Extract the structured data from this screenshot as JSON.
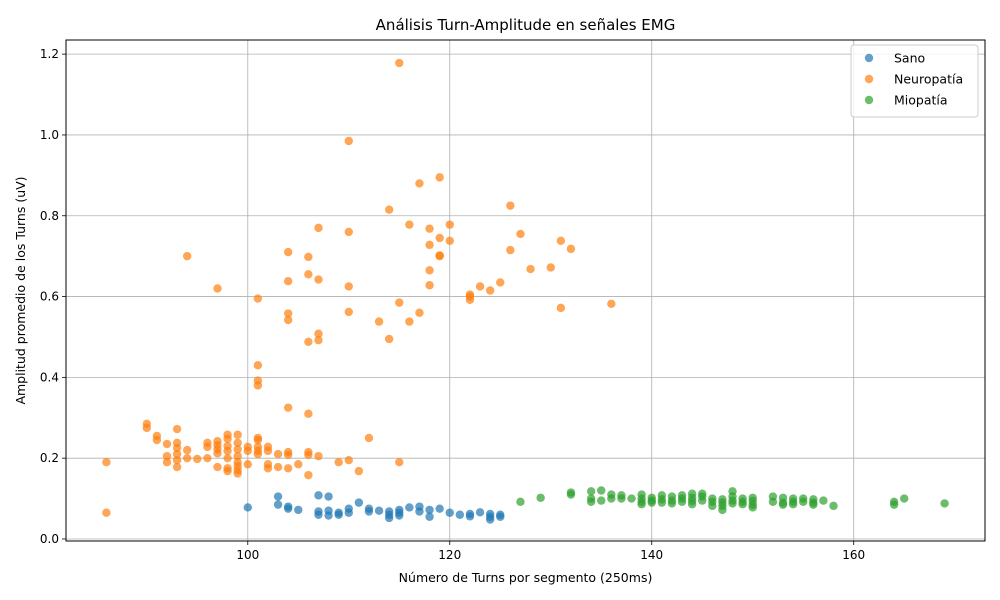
{
  "chart_data": {
    "type": "scatter",
    "title": "Análisis Turn-Amplitude en señales EMG",
    "xlabel": "Número de Turns por segmento (250ms)",
    "ylabel": "Amplitud promedio de los Turns (uV)",
    "xlim": [
      82,
      173
    ],
    "ylim": [
      -0.005,
      1.235
    ],
    "xticks": [
      100,
      120,
      140,
      160
    ],
    "yticks": [
      0.0,
      0.2,
      0.4,
      0.6,
      0.8,
      1.0,
      1.2
    ],
    "ytick_labels": [
      "0.0",
      "0.2",
      "0.4",
      "0.6",
      "0.8",
      "1.0",
      "1.2"
    ],
    "grid": true,
    "legend_position": "top-right",
    "series": [
      {
        "name": "Sano",
        "color": "#1f77b4",
        "points": [
          [
            100,
            0.078
          ],
          [
            103,
            0.105
          ],
          [
            103,
            0.085
          ],
          [
            104,
            0.08
          ],
          [
            104,
            0.075
          ],
          [
            105,
            0.072
          ],
          [
            107,
            0.108
          ],
          [
            107,
            0.068
          ],
          [
            107,
            0.06
          ],
          [
            108,
            0.105
          ],
          [
            108,
            0.07
          ],
          [
            108,
            0.058
          ],
          [
            109,
            0.065
          ],
          [
            109,
            0.06
          ],
          [
            110,
            0.075
          ],
          [
            110,
            0.065
          ],
          [
            111,
            0.09
          ],
          [
            112,
            0.075
          ],
          [
            112,
            0.068
          ],
          [
            113,
            0.07
          ],
          [
            114,
            0.068
          ],
          [
            114,
            0.06
          ],
          [
            114,
            0.052
          ],
          [
            115,
            0.072
          ],
          [
            115,
            0.065
          ],
          [
            115,
            0.058
          ],
          [
            116,
            0.078
          ],
          [
            117,
            0.08
          ],
          [
            117,
            0.068
          ],
          [
            118,
            0.072
          ],
          [
            118,
            0.055
          ],
          [
            119,
            0.075
          ],
          [
            120,
            0.065
          ],
          [
            121,
            0.06
          ],
          [
            122,
            0.062
          ],
          [
            122,
            0.056
          ],
          [
            123,
            0.066
          ],
          [
            124,
            0.062
          ],
          [
            124,
            0.055
          ],
          [
            124,
            0.048
          ],
          [
            125,
            0.06
          ],
          [
            125,
            0.055
          ]
        ]
      },
      {
        "name": "Neuropatía",
        "color": "#ff7f0e",
        "points": [
          [
            86,
            0.19
          ],
          [
            86,
            0.065
          ],
          [
            90,
            0.285
          ],
          [
            90,
            0.275
          ],
          [
            91,
            0.255
          ],
          [
            91,
            0.245
          ],
          [
            92,
            0.235
          ],
          [
            92,
            0.205
          ],
          [
            92,
            0.19
          ],
          [
            93,
            0.272
          ],
          [
            93,
            0.238
          ],
          [
            93,
            0.225
          ],
          [
            93,
            0.21
          ],
          [
            93,
            0.195
          ],
          [
            93,
            0.178
          ],
          [
            94,
            0.7
          ],
          [
            94,
            0.22
          ],
          [
            94,
            0.2
          ],
          [
            95,
            0.198
          ],
          [
            96,
            0.238
          ],
          [
            96,
            0.228
          ],
          [
            96,
            0.2
          ],
          [
            97,
            0.62
          ],
          [
            97,
            0.242
          ],
          [
            97,
            0.232
          ],
          [
            97,
            0.222
          ],
          [
            97,
            0.212
          ],
          [
            97,
            0.178
          ],
          [
            98,
            0.258
          ],
          [
            98,
            0.248
          ],
          [
            98,
            0.23
          ],
          [
            98,
            0.218
          ],
          [
            98,
            0.2
          ],
          [
            98,
            0.175
          ],
          [
            98,
            0.168
          ],
          [
            99,
            0.258
          ],
          [
            99,
            0.238
          ],
          [
            99,
            0.222
          ],
          [
            99,
            0.205
          ],
          [
            99,
            0.19
          ],
          [
            99,
            0.18
          ],
          [
            99,
            0.17
          ],
          [
            99,
            0.162
          ],
          [
            100,
            0.228
          ],
          [
            100,
            0.218
          ],
          [
            100,
            0.185
          ],
          [
            101,
            0.595
          ],
          [
            101,
            0.43
          ],
          [
            101,
            0.392
          ],
          [
            101,
            0.38
          ],
          [
            101,
            0.25
          ],
          [
            101,
            0.245
          ],
          [
            101,
            0.228
          ],
          [
            101,
            0.218
          ],
          [
            101,
            0.21
          ],
          [
            102,
            0.228
          ],
          [
            102,
            0.218
          ],
          [
            102,
            0.185
          ],
          [
            102,
            0.175
          ],
          [
            103,
            0.21
          ],
          [
            103,
            0.178
          ],
          [
            104,
            0.71
          ],
          [
            104,
            0.638
          ],
          [
            104,
            0.558
          ],
          [
            104,
            0.542
          ],
          [
            104,
            0.325
          ],
          [
            104,
            0.215
          ],
          [
            104,
            0.208
          ],
          [
            104,
            0.175
          ],
          [
            105,
            0.185
          ],
          [
            106,
            0.698
          ],
          [
            106,
            0.655
          ],
          [
            106,
            0.488
          ],
          [
            106,
            0.31
          ],
          [
            106,
            0.215
          ],
          [
            106,
            0.208
          ],
          [
            106,
            0.158
          ],
          [
            107,
            0.77
          ],
          [
            107,
            0.642
          ],
          [
            107,
            0.508
          ],
          [
            107,
            0.492
          ],
          [
            107,
            0.205
          ],
          [
            109,
            0.19
          ],
          [
            110,
            0.985
          ],
          [
            110,
            0.76
          ],
          [
            110,
            0.625
          ],
          [
            110,
            0.562
          ],
          [
            110,
            0.195
          ],
          [
            111,
            0.168
          ],
          [
            112,
            0.25
          ],
          [
            113,
            0.538
          ],
          [
            114,
            0.815
          ],
          [
            114,
            0.495
          ],
          [
            115,
            1.178
          ],
          [
            115,
            0.585
          ],
          [
            115,
            0.19
          ],
          [
            116,
            0.778
          ],
          [
            116,
            0.538
          ],
          [
            117,
            0.88
          ],
          [
            117,
            0.56
          ],
          [
            118,
            0.768
          ],
          [
            118,
            0.728
          ],
          [
            118,
            0.665
          ],
          [
            118,
            0.628
          ],
          [
            119,
            0.895
          ],
          [
            119,
            0.745
          ],
          [
            119,
            0.702
          ],
          [
            119,
            0.7
          ],
          [
            120,
            0.778
          ],
          [
            120,
            0.738
          ],
          [
            122,
            0.605
          ],
          [
            122,
            0.6
          ],
          [
            122,
            0.592
          ],
          [
            123,
            0.625
          ],
          [
            124,
            0.615
          ],
          [
            125,
            0.635
          ],
          [
            126,
            0.825
          ],
          [
            126,
            0.715
          ],
          [
            127,
            0.755
          ],
          [
            128,
            0.668
          ],
          [
            130,
            0.672
          ],
          [
            131,
            0.738
          ],
          [
            131,
            0.572
          ],
          [
            132,
            0.718
          ],
          [
            136,
            0.582
          ]
        ]
      },
      {
        "name": "Miopatía",
        "color": "#2ca02c",
        "points": [
          [
            127,
            0.092
          ],
          [
            129,
            0.102
          ],
          [
            132,
            0.115
          ],
          [
            132,
            0.11
          ],
          [
            134,
            0.118
          ],
          [
            134,
            0.1
          ],
          [
            134,
            0.092
          ],
          [
            135,
            0.12
          ],
          [
            135,
            0.095
          ],
          [
            136,
            0.11
          ],
          [
            136,
            0.1
          ],
          [
            137,
            0.108
          ],
          [
            137,
            0.1
          ],
          [
            138,
            0.1
          ],
          [
            139,
            0.11
          ],
          [
            139,
            0.1
          ],
          [
            139,
            0.092
          ],
          [
            139,
            0.086
          ],
          [
            140,
            0.102
          ],
          [
            140,
            0.095
          ],
          [
            140,
            0.09
          ],
          [
            141,
            0.108
          ],
          [
            141,
            0.098
          ],
          [
            141,
            0.09
          ],
          [
            142,
            0.105
          ],
          [
            142,
            0.095
          ],
          [
            142,
            0.088
          ],
          [
            143,
            0.108
          ],
          [
            143,
            0.1
          ],
          [
            143,
            0.092
          ],
          [
            144,
            0.112
          ],
          [
            144,
            0.102
          ],
          [
            144,
            0.094
          ],
          [
            144,
            0.086
          ],
          [
            145,
            0.112
          ],
          [
            145,
            0.105
          ],
          [
            145,
            0.095
          ],
          [
            146,
            0.1
          ],
          [
            146,
            0.092
          ],
          [
            146,
            0.082
          ],
          [
            147,
            0.098
          ],
          [
            147,
            0.09
          ],
          [
            147,
            0.082
          ],
          [
            147,
            0.072
          ],
          [
            148,
            0.118
          ],
          [
            148,
            0.105
          ],
          [
            148,
            0.095
          ],
          [
            148,
            0.088
          ],
          [
            149,
            0.1
          ],
          [
            149,
            0.092
          ],
          [
            149,
            0.086
          ],
          [
            150,
            0.102
          ],
          [
            150,
            0.094
          ],
          [
            150,
            0.085
          ],
          [
            150,
            0.078
          ],
          [
            152,
            0.105
          ],
          [
            152,
            0.092
          ],
          [
            153,
            0.102
          ],
          [
            153,
            0.09
          ],
          [
            153,
            0.085
          ],
          [
            154,
            0.1
          ],
          [
            154,
            0.092
          ],
          [
            154,
            0.086
          ],
          [
            155,
            0.1
          ],
          [
            155,
            0.092
          ],
          [
            156,
            0.098
          ],
          [
            156,
            0.09
          ],
          [
            156,
            0.085
          ],
          [
            157,
            0.095
          ],
          [
            158,
            0.082
          ],
          [
            164,
            0.092
          ],
          [
            164,
            0.085
          ],
          [
            165,
            0.1
          ],
          [
            169,
            0.088
          ]
        ]
      }
    ]
  }
}
